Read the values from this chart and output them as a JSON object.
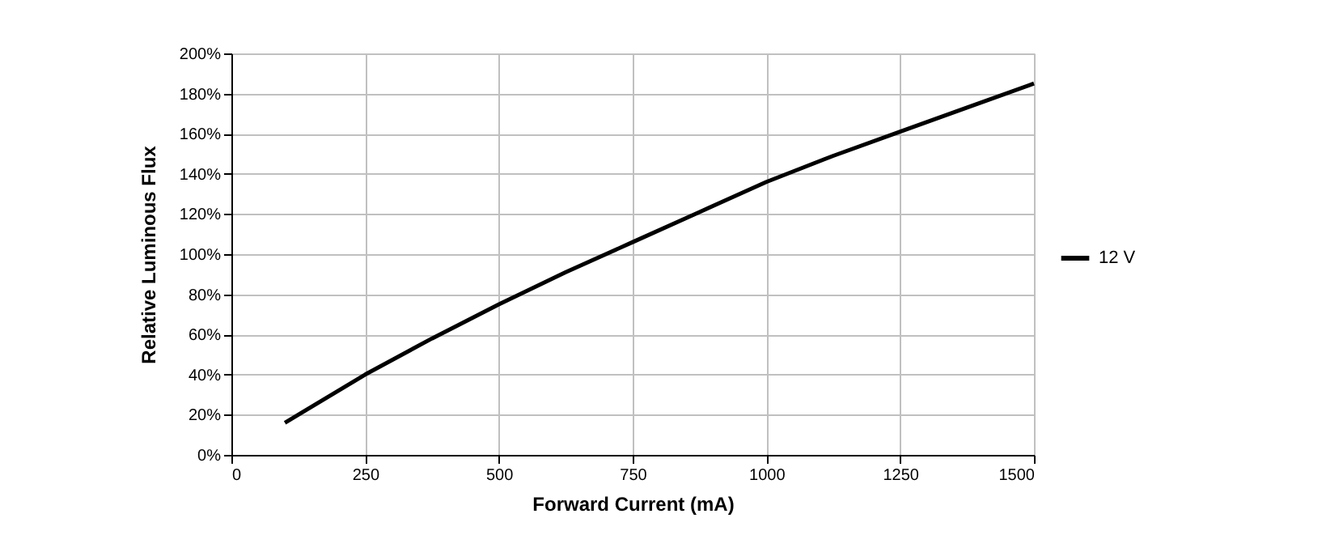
{
  "chart_data": {
    "type": "line",
    "xlabel": "Forward Current (mA)",
    "ylabel": "Relative Luminous Flux",
    "x": [
      100,
      250,
      375,
      500,
      625,
      750,
      875,
      1000,
      1125,
      1250,
      1375,
      1500
    ],
    "series": [
      {
        "name": "12 V",
        "color": "#000000",
        "values": [
          16,
          40,
          58,
          75,
          91,
          106,
          121,
          136,
          149,
          161,
          173,
          185
        ]
      }
    ],
    "xlim": [
      0,
      1500
    ],
    "xticks": [
      0,
      250,
      500,
      750,
      1000,
      1250,
      1500
    ],
    "ylim": [
      0,
      200
    ],
    "yticks": [
      {
        "value": 0,
        "label": "0%"
      },
      {
        "value": 20,
        "label": "20%"
      },
      {
        "value": 40,
        "label": "40%"
      },
      {
        "value": 60,
        "label": "60%"
      },
      {
        "value": 80,
        "label": "80%"
      },
      {
        "value": 100,
        "label": "100%"
      },
      {
        "value": 120,
        "label": "120%"
      },
      {
        "value": 140,
        "label": "140%"
      },
      {
        "value": 160,
        "label": "160%"
      },
      {
        "value": 180,
        "label": "180%"
      },
      {
        "value": 200,
        "label": "200%"
      }
    ],
    "grid": true,
    "legend": "right",
    "marker": "none",
    "line_style": "solid"
  }
}
